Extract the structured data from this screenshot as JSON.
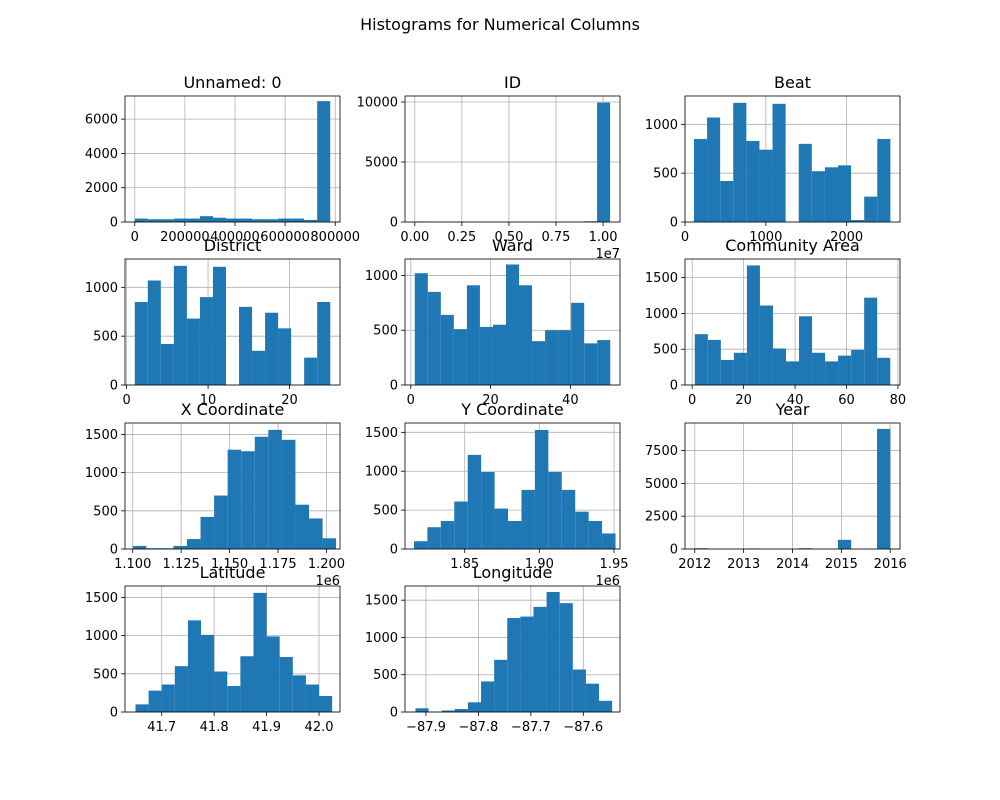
{
  "figure": {
    "title": "Histograms for Numerical Columns"
  },
  "chart_data": [
    {
      "type": "bar",
      "title": "Unnamed: 0",
      "grid": true,
      "xlim": [
        -39000,
        819000
      ],
      "ylim": [
        0,
        7350
      ],
      "bin_edges": [
        0,
        52000,
        104000,
        156000,
        208000,
        260000,
        312000,
        364000,
        416000,
        468000,
        520000,
        572000,
        624000,
        676000,
        728000,
        780000
      ],
      "values": [
        200,
        160,
        160,
        200,
        200,
        340,
        250,
        200,
        200,
        160,
        160,
        200,
        200,
        120,
        7050
      ],
      "xticks": [
        0,
        200000,
        400000,
        600000,
        800000
      ],
      "xtick_labels": [
        "0",
        "200000",
        "400000",
        "600000",
        "800000"
      ],
      "yticks": [
        0,
        2000,
        4000,
        6000
      ],
      "ytick_labels": [
        "0",
        "2000",
        "4000",
        "6000"
      ]
    },
    {
      "type": "bar",
      "title": "ID",
      "grid": true,
      "xlim": [
        -520000,
        10900000
      ],
      "ylim": [
        0,
        10500
      ],
      "offset_text": "1e7",
      "bin_edges": [
        24000,
        714000,
        1404000,
        2094000,
        2784000,
        3474000,
        4164000,
        4854000,
        5544000,
        6234000,
        6924000,
        7614000,
        8304000,
        8994000,
        9684000,
        10374000
      ],
      "values": [
        40,
        0,
        0,
        0,
        0,
        0,
        0,
        0,
        0,
        0,
        0,
        0,
        0,
        60,
        9950
      ],
      "xticks": [
        0,
        2500000,
        5000000,
        7500000,
        10000000
      ],
      "xtick_labels": [
        "0.00",
        "0.25",
        "0.50",
        "0.75",
        "1.00"
      ],
      "yticks": [
        0,
        5000,
        10000
      ],
      "ytick_labels": [
        "0",
        "5000",
        "10000"
      ]
    },
    {
      "type": "bar",
      "title": "Beat",
      "grid": true,
      "xlim": [
        0,
        2660
      ],
      "ylim": [
        0,
        1290
      ],
      "bin_edges": [
        111,
        273,
        435,
        597,
        759,
        921,
        1083,
        1245,
        1407,
        1569,
        1731,
        1893,
        2055,
        2217,
        2379,
        2541
      ],
      "values": [
        850,
        1070,
        420,
        1220,
        830,
        740,
        1210,
        0,
        800,
        520,
        560,
        580,
        20,
        260,
        850
      ],
      "xticks": [
        0,
        1000,
        2000
      ],
      "xtick_labels": [
        "0",
        "1000",
        "2000"
      ],
      "yticks": [
        0,
        500,
        1000
      ],
      "ytick_labels": [
        "0",
        "500",
        "1000"
      ]
    },
    {
      "type": "bar",
      "title": "District",
      "grid": true,
      "xlim": [
        -0.2,
        26.2
      ],
      "ylim": [
        0,
        1290
      ],
      "bin_edges": [
        1,
        2.6,
        4.2,
        5.8,
        7.4,
        9,
        10.6,
        12.2,
        13.8,
        15.4,
        17,
        18.6,
        20.2,
        21.8,
        23.4,
        25
      ],
      "values": [
        850,
        1070,
        420,
        1220,
        680,
        900,
        1210,
        0,
        800,
        350,
        740,
        580,
        0,
        280,
        850
      ],
      "xticks": [
        0,
        10,
        20
      ],
      "xtick_labels": [
        "0",
        "10",
        "20"
      ],
      "yticks": [
        0,
        500,
        1000
      ],
      "ytick_labels": [
        "0",
        "500",
        "1000"
      ]
    },
    {
      "type": "bar",
      "title": "Ward",
      "grid": true,
      "xlim": [
        -1.45,
        52.45
      ],
      "ylim": [
        0,
        1150
      ],
      "bin_edges": [
        1,
        4.27,
        7.53,
        10.8,
        14.07,
        17.33,
        20.6,
        23.87,
        27.13,
        30.4,
        33.67,
        36.93,
        40.2,
        43.47,
        46.73,
        50
      ],
      "values": [
        1020,
        850,
        640,
        510,
        910,
        530,
        550,
        1100,
        910,
        400,
        500,
        500,
        750,
        380,
        410
      ],
      "xticks": [
        0,
        20,
        40
      ],
      "xtick_labels": [
        "0",
        "20",
        "40"
      ],
      "yticks": [
        0,
        500,
        1000
      ],
      "ytick_labels": [
        "0",
        "500",
        "1000"
      ]
    },
    {
      "type": "bar",
      "title": "Community Area",
      "grid": true,
      "xlim": [
        -2.8,
        80.8
      ],
      "ylim": [
        0,
        1760
      ],
      "bin_edges": [
        1,
        6.07,
        11.13,
        16.2,
        21.27,
        26.33,
        31.4,
        36.47,
        41.53,
        46.6,
        51.67,
        56.73,
        61.8,
        66.87,
        71.93,
        77
      ],
      "values": [
        710,
        630,
        350,
        450,
        1670,
        1110,
        510,
        330,
        960,
        450,
        330,
        410,
        490,
        1220,
        380
      ],
      "xticks": [
        0,
        20,
        40,
        60,
        80
      ],
      "xtick_labels": [
        "0",
        "20",
        "40",
        "60",
        "80"
      ],
      "yticks": [
        0,
        500,
        1000,
        1500
      ],
      "ytick_labels": [
        "0",
        "500",
        "1000",
        "1500"
      ]
    },
    {
      "type": "bar",
      "title": "X Coordinate",
      "grid": true,
      "xlim": [
        1096000,
        1207000
      ],
      "ylim": [
        0,
        1650
      ],
      "offset_text": "1e6",
      "bin_edges": [
        1100000,
        1107000,
        1114000,
        1121000,
        1128000,
        1135000,
        1142000,
        1149000,
        1156000,
        1163000,
        1170000,
        1177000,
        1184000,
        1191000,
        1198000,
        1205000
      ],
      "values": [
        40,
        10,
        10,
        40,
        130,
        420,
        700,
        1300,
        1280,
        1470,
        1560,
        1430,
        580,
        400,
        140
      ],
      "xticks": [
        1100000,
        1125000,
        1150000,
        1175000,
        1200000
      ],
      "xtick_labels": [
        "1.100",
        "1.125",
        "1.150",
        "1.175",
        "1.200"
      ],
      "yticks": [
        0,
        500,
        1000,
        1500
      ],
      "ytick_labels": [
        "0",
        "500",
        "1000",
        "1500"
      ]
    },
    {
      "type": "bar",
      "title": "Y Coordinate",
      "grid": true,
      "xlim": [
        1810000,
        1954000
      ],
      "ylim": [
        0,
        1620
      ],
      "offset_text": "1e6",
      "bin_edges": [
        1816000,
        1825000,
        1834000,
        1843000,
        1852000,
        1861000,
        1870000,
        1879000,
        1888000,
        1897000,
        1906000,
        1915000,
        1924000,
        1933000,
        1942000,
        1951000
      ],
      "values": [
        100,
        280,
        360,
        610,
        1210,
        990,
        520,
        360,
        760,
        1530,
        990,
        760,
        480,
        360,
        200
      ],
      "xticks": [
        1850000,
        1900000,
        1950000
      ],
      "xtick_labels": [
        "1.85",
        "1.90",
        "1.95"
      ],
      "yticks": [
        0,
        500,
        1000,
        1500
      ],
      "ytick_labels": [
        "0",
        "500",
        "1000",
        "1500"
      ]
    },
    {
      "type": "bar",
      "title": "Year",
      "grid": true,
      "xlim": [
        2011.8,
        2016.2
      ],
      "ylim": [
        0,
        9600
      ],
      "bin_edges": [
        2012,
        2012.27,
        2012.53,
        2012.8,
        2013.07,
        2013.33,
        2013.6,
        2013.87,
        2014.13,
        2014.4,
        2014.67,
        2014.93,
        2015.2,
        2015.47,
        2015.73,
        2016
      ],
      "values": [
        60,
        0,
        0,
        0,
        40,
        0,
        0,
        0,
        60,
        0,
        0,
        700,
        0,
        0,
        9150
      ],
      "xticks": [
        2012,
        2013,
        2014,
        2015,
        2016
      ],
      "xtick_labels": [
        "2012",
        "2013",
        "2014",
        "2015",
        "2016"
      ],
      "yticks": [
        0,
        2500,
        5000,
        7500
      ],
      "ytick_labels": [
        "0",
        "2500",
        "5000",
        "7500"
      ]
    },
    {
      "type": "bar",
      "title": "Latitude",
      "grid": true,
      "xlim": [
        41.63,
        42.04
      ],
      "ylim": [
        0,
        1650
      ],
      "bin_edges": [
        41.65,
        41.675,
        41.7,
        41.725,
        41.75,
        41.775,
        41.8,
        41.825,
        41.85,
        41.875,
        41.9,
        41.925,
        41.95,
        41.975,
        42.0,
        42.025
      ],
      "values": [
        100,
        280,
        360,
        600,
        1200,
        1010,
        530,
        340,
        730,
        1560,
        990,
        720,
        480,
        360,
        210
      ],
      "xticks": [
        41.7,
        41.8,
        41.9,
        42.0
      ],
      "xtick_labels": [
        "41.7",
        "41.8",
        "41.9",
        "42.0"
      ],
      "yticks": [
        0,
        500,
        1000,
        1500
      ],
      "ytick_labels": [
        "0",
        "500",
        "1000",
        "1500"
      ]
    },
    {
      "type": "bar",
      "title": "Longitude",
      "grid": true,
      "xlim": [
        -87.94,
        -87.53
      ],
      "ylim": [
        0,
        1690
      ],
      "bin_edges": [
        -87.92,
        -87.895,
        -87.87,
        -87.845,
        -87.82,
        -87.795,
        -87.77,
        -87.745,
        -87.72,
        -87.695,
        -87.67,
        -87.645,
        -87.62,
        -87.595,
        -87.57,
        -87.545
      ],
      "values": [
        50,
        0,
        20,
        40,
        130,
        410,
        700,
        1260,
        1280,
        1410,
        1610,
        1460,
        570,
        380,
        150
      ],
      "xticks": [
        -87.9,
        -87.8,
        -87.7,
        -87.6
      ],
      "xtick_labels": [
        "−87.9",
        "−87.8",
        "−87.7",
        "−87.6"
      ],
      "yticks": [
        0,
        500,
        1000,
        1500
      ],
      "ytick_labels": [
        "0",
        "500",
        "1000",
        "1500"
      ]
    }
  ]
}
